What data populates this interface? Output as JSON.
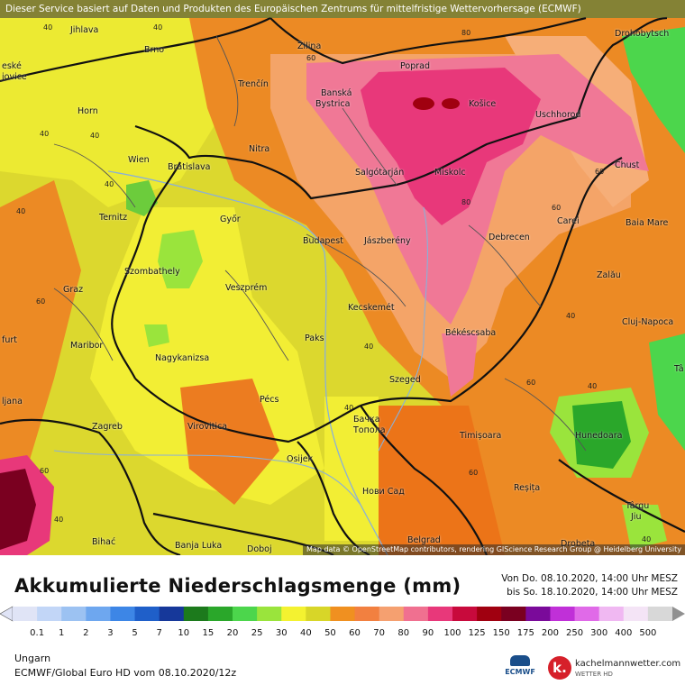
{
  "header": {
    "service_text": "Dieser Service basiert auf Daten und Produkten des Europäischen Zentrums für mittelfristige Wettervorhersage (ECMWF)"
  },
  "map": {
    "attribution": "Map data © OpenStreetMap contributors, rendering GIScience Research Group @ Heidelberg University",
    "cities": {
      "jihlava": "Jihlava",
      "brno": "Brno",
      "zilina": "Žilina",
      "poprad": "Poprad",
      "drohobytsch": "Drohobytsch",
      "ceske": "eské",
      "jovice": "jovice",
      "trencin": "Trenčín",
      "banska": "Banská",
      "bystrica": "Bystrica",
      "kosice": "Košice",
      "uschhorod": "Uschhorod",
      "horn": "Horn",
      "nitra": "Nitra",
      "chust": "Chust",
      "wien": "Wien",
      "bratislava": "Bratislava",
      "salgotarjan": "Salgótarján",
      "miskolc": "Miskolc",
      "ternitz": "Ternitz",
      "gyor": "Győr",
      "carei": "Carei",
      "baia_mare": "Baia Mare",
      "budapest": "Budapest",
      "jaszbereny": "Jászberény",
      "debrecen": "Debrecen",
      "szombathely": "Szombathely",
      "zalau": "Zalău",
      "graz": "Graz",
      "veszprem": "Veszprém",
      "kecskemet": "Kecskemét",
      "cluj": "Cluj-Napoca",
      "furt": "furt",
      "maribor": "Maribor",
      "paks": "Paks",
      "bekescsaba": "Békéscsaba",
      "nagykanizsa": "Nagykanizsa",
      "szeged": "Szeged",
      "ljana": "ljana",
      "pecs": "Pécs",
      "backa": "Бачка",
      "topola": "Топола",
      "zagreb": "Zagreb",
      "virovitica": "Virovitica",
      "timisoara": "Timișoara",
      "hunedoara": "Hunedoara",
      "osijek": "Osijek",
      "resita": "Reșița",
      "novi_sad": "Нови Сад",
      "targu": "Târgu",
      "jiu": "Jiu",
      "bihac": "Bihać",
      "banja_luka": "Banja Luka",
      "doboj": "Doboj",
      "belgrad": "Belgrad",
      "drobeta": "Drobeta",
      "tz": "Tâ"
    },
    "contour_labels": [
      "40",
      "40",
      "80",
      "40",
      "60",
      "40",
      "60",
      "80",
      "60",
      "40",
      "60",
      "40",
      "40",
      "40",
      "40",
      "60",
      "60",
      "40",
      "60",
      "40",
      "40"
    ]
  },
  "legend": {
    "title": "Akkumulierte Niederschlagsmenge (mm)",
    "period_from": "Von Do. 08.10.2020, 14:00 Uhr MESZ",
    "period_to": "bis So. 18.10.2020, 14:00 Uhr MESZ",
    "ticks": [
      "0.1",
      "1",
      "2",
      "3",
      "5",
      "7",
      "10",
      "15",
      "20",
      "25",
      "30",
      "40",
      "50",
      "60",
      "70",
      "80",
      "90",
      "100",
      "125",
      "150",
      "175",
      "200",
      "250",
      "300",
      "400",
      "500"
    ],
    "colors": [
      "#e0e4f6",
      "#c2d6f7",
      "#9cc2f2",
      "#6ea7ef",
      "#3d86e6",
      "#1f5fc9",
      "#16389a",
      "#1c7a1c",
      "#2aa72a",
      "#4cd64c",
      "#9ae43c",
      "#f4f230",
      "#d8d628",
      "#f09020",
      "#f28040",
      "#f5a070",
      "#f07090",
      "#e8387a",
      "#c80a3c",
      "#a00010",
      "#7a0020",
      "#7a0a9a",
      "#c030d8",
      "#e06ae8",
      "#f0b8f2",
      "#f4e4f6",
      "#d8d8d8"
    ]
  },
  "footer": {
    "region": "Ungarn",
    "model": "ECMWF/Global Euro HD vom  08.10.2020/12z",
    "ecmwf_label": "ECMWF",
    "brand_mark": "k.",
    "brand_name": "kachelmannwetter.com",
    "brand_sub": "WETTER HD"
  },
  "colors": {
    "dark_red": "#a00010",
    "magenta": "#e8387a",
    "pink": "#f07090",
    "salmon": "#f5a070",
    "orange": "#f08a30",
    "dark_orange": "#ec7418",
    "yellow": "#f4f230",
    "olive_yellow": "#d8d628",
    "light_green": "#9ae43c",
    "green": "#2aa72a"
  }
}
